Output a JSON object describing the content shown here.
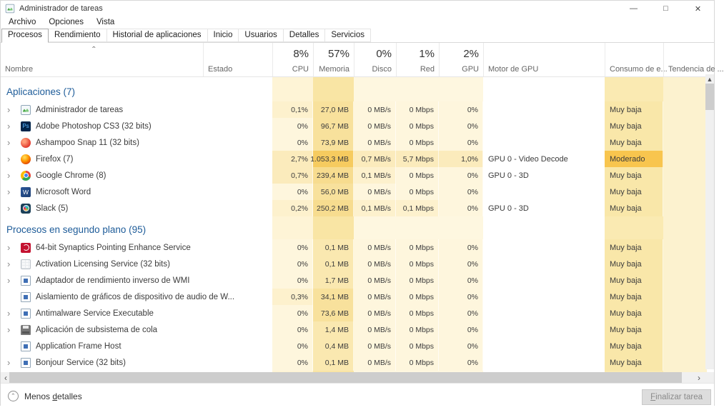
{
  "window": {
    "title": "Administrador de tareas"
  },
  "icons": {
    "app": "task-manager",
    "minimize": "—",
    "maximize": "□",
    "close": "✕",
    "expand": "›",
    "sort_asc": "ˆ",
    "chevron_up": "ˆ",
    "scroll_up": "▲",
    "scroll_left": "‹",
    "scroll_right": "›"
  },
  "menu": [
    {
      "label": "Archivo"
    },
    {
      "label": "Opciones"
    },
    {
      "label": "Vista"
    }
  ],
  "tabs": [
    {
      "label": "Procesos",
      "selected": true
    },
    {
      "label": "Rendimiento"
    },
    {
      "label": "Historial de aplicaciones"
    },
    {
      "label": "Inicio"
    },
    {
      "label": "Usuarios"
    },
    {
      "label": "Detalles"
    },
    {
      "label": "Servicios"
    }
  ],
  "columns": {
    "name": "Nombre",
    "status": "Estado",
    "usage": [
      {
        "pct": "8%",
        "label": "CPU"
      },
      {
        "pct": "57%",
        "label": "Memoria"
      },
      {
        "pct": "0%",
        "label": "Disco"
      },
      {
        "pct": "1%",
        "label": "Red"
      },
      {
        "pct": "2%",
        "label": "GPU"
      }
    ],
    "gpu_engine": "Motor de GPU",
    "energy": "Consumo de e...",
    "trend": "Tendencia de ..."
  },
  "sections": [
    {
      "title": "Aplicaciones (7)",
      "rows": [
        {
          "name": "Administrador de tareas",
          "icon": "task-manager",
          "expand": true,
          "values": [
            "0,1%",
            "27,0 MB",
            "0 MB/s",
            "0 Mbps",
            "0%"
          ],
          "engine": "",
          "energy": "Muy baja",
          "heats": [
            "c1",
            "m2",
            "c0",
            "c0",
            "c0",
            "e1"
          ]
        },
        {
          "name": "Adobe Photoshop CS3 (32 bits)",
          "icon": "photoshop",
          "expand": true,
          "values": [
            "0%",
            "96,7 MB",
            "0 MB/s",
            "0 Mbps",
            "0%"
          ],
          "engine": "",
          "energy": "Muy baja",
          "heats": [
            "c0",
            "m2",
            "c0",
            "c0",
            "c0",
            "e1"
          ]
        },
        {
          "name": "Ashampoo Snap 11 (32 bits)",
          "icon": "ashampoo",
          "expand": true,
          "values": [
            "0%",
            "73,9 MB",
            "0 MB/s",
            "0 Mbps",
            "0%"
          ],
          "engine": "",
          "energy": "Muy baja",
          "heats": [
            "c0",
            "m2",
            "c0",
            "c0",
            "c0",
            "e1"
          ]
        },
        {
          "name": "Firefox (7)",
          "icon": "firefox",
          "expand": true,
          "values": [
            "2,7%",
            "1.053,3 MB",
            "0,7 MB/s",
            "5,7 Mbps",
            "1,0%"
          ],
          "engine": "GPU 0 - Video Decode",
          "energy": "Moderado",
          "heats": [
            "c2",
            "m4",
            "c2",
            "c2",
            "c2",
            "e2"
          ]
        },
        {
          "name": "Google Chrome (8)",
          "icon": "chrome",
          "expand": true,
          "values": [
            "0,7%",
            "239,4 MB",
            "0,1 MB/s",
            "0 Mbps",
            "0%"
          ],
          "engine": "GPU 0 - 3D",
          "energy": "Muy baja",
          "heats": [
            "c2",
            "m3",
            "c1",
            "c0",
            "c0",
            "e1"
          ]
        },
        {
          "name": "Microsoft Word",
          "icon": "word",
          "expand": true,
          "values": [
            "0%",
            "56,0 MB",
            "0 MB/s",
            "0 Mbps",
            "0%"
          ],
          "engine": "",
          "energy": "Muy baja",
          "heats": [
            "c0",
            "m2",
            "c0",
            "c0",
            "c0",
            "e1"
          ]
        },
        {
          "name": "Slack (5)",
          "icon": "slack",
          "expand": true,
          "values": [
            "0,2%",
            "250,2 MB",
            "0,1 MB/s",
            "0,1 Mbps",
            "0%"
          ],
          "engine": "GPU 0 - 3D",
          "energy": "Muy baja",
          "heats": [
            "c1",
            "m3",
            "c1",
            "c1",
            "c0",
            "e1"
          ]
        }
      ]
    },
    {
      "title": "Procesos en segundo plano (95)",
      "rows": [
        {
          "name": "64-bit Synaptics Pointing Enhance Service",
          "icon": "synaptics",
          "expand": true,
          "values": [
            "0%",
            "0,1 MB",
            "0 MB/s",
            "0 Mbps",
            "0%"
          ],
          "engine": "",
          "energy": "Muy baja",
          "heats": [
            "c0",
            "m1",
            "c0",
            "c0",
            "c0",
            "e1"
          ]
        },
        {
          "name": "Activation Licensing Service (32 bits)",
          "icon": "generic-exe",
          "expand": true,
          "values": [
            "0%",
            "0,1 MB",
            "0 MB/s",
            "0 Mbps",
            "0%"
          ],
          "engine": "",
          "energy": "Muy baja",
          "heats": [
            "c0",
            "m1",
            "c0",
            "c0",
            "c0",
            "e1"
          ]
        },
        {
          "name": "Adaptador de rendimiento inverso de WMI",
          "icon": "default-app",
          "expand": true,
          "values": [
            "0%",
            "1,7 MB",
            "0 MB/s",
            "0 Mbps",
            "0%"
          ],
          "engine": "",
          "energy": "Muy baja",
          "heats": [
            "c0",
            "m1",
            "c0",
            "c0",
            "c0",
            "e1"
          ]
        },
        {
          "name": "Aislamiento de gráficos de dispositivo de audio de W...",
          "icon": "default-app",
          "expand": false,
          "values": [
            "0,3%",
            "34,1 MB",
            "0 MB/s",
            "0 Mbps",
            "0%"
          ],
          "engine": "",
          "energy": "Muy baja",
          "heats": [
            "c1",
            "m2",
            "c0",
            "c0",
            "c0",
            "e1"
          ]
        },
        {
          "name": "Antimalware Service Executable",
          "icon": "default-app",
          "expand": true,
          "values": [
            "0%",
            "73,6 MB",
            "0 MB/s",
            "0 Mbps",
            "0%"
          ],
          "engine": "",
          "energy": "Muy baja",
          "heats": [
            "c0",
            "m2",
            "c0",
            "c0",
            "c0",
            "e1"
          ]
        },
        {
          "name": "Aplicación de subsistema de cola",
          "icon": "printer",
          "expand": true,
          "values": [
            "0%",
            "1,4 MB",
            "0 MB/s",
            "0 Mbps",
            "0%"
          ],
          "engine": "",
          "energy": "Muy baja",
          "heats": [
            "c0",
            "m1",
            "c0",
            "c0",
            "c0",
            "e1"
          ]
        },
        {
          "name": "Application Frame Host",
          "icon": "default-app",
          "expand": false,
          "values": [
            "0%",
            "0,4 MB",
            "0 MB/s",
            "0 Mbps",
            "0%"
          ],
          "engine": "",
          "energy": "Muy baja",
          "heats": [
            "c0",
            "m1",
            "c0",
            "c0",
            "c0",
            "e1"
          ]
        },
        {
          "name": "Bonjour Service (32 bits)",
          "icon": "default-app",
          "expand": true,
          "values": [
            "0%",
            "0,1 MB",
            "0 MB/s",
            "0 Mbps",
            "0%"
          ],
          "engine": "",
          "energy": "Muy baja",
          "heats": [
            "c0",
            "m1",
            "c0",
            "c0",
            "c0",
            "e1"
          ]
        }
      ]
    }
  ],
  "footer": {
    "toggle_prefix": "Menos ",
    "toggle_accel": "d",
    "toggle_suffix": "etalles",
    "end_task_accel": "F",
    "end_task_suffix": "inalizar tarea"
  },
  "colors": {
    "section_title": "#1e5c99",
    "heat": {
      "c0": "#fef6dd",
      "c1": "#fdf1cd",
      "c2": "#fbebbc",
      "m1": "#fae8b0",
      "m2": "#f8e19c",
      "m3": "#f7dc8f",
      "m4": "#f6cb5f",
      "e1": "#f9e7a9",
      "e2": "#f8c54e"
    },
    "stripes": {
      "cpu": "#fef4d6",
      "mem": "#f9e5a4",
      "disk": "#fef7e0",
      "net": "#fef7e0",
      "gpu": "#fef7e0",
      "energy": "#faeab2",
      "trend": "#fcf2cf"
    }
  }
}
